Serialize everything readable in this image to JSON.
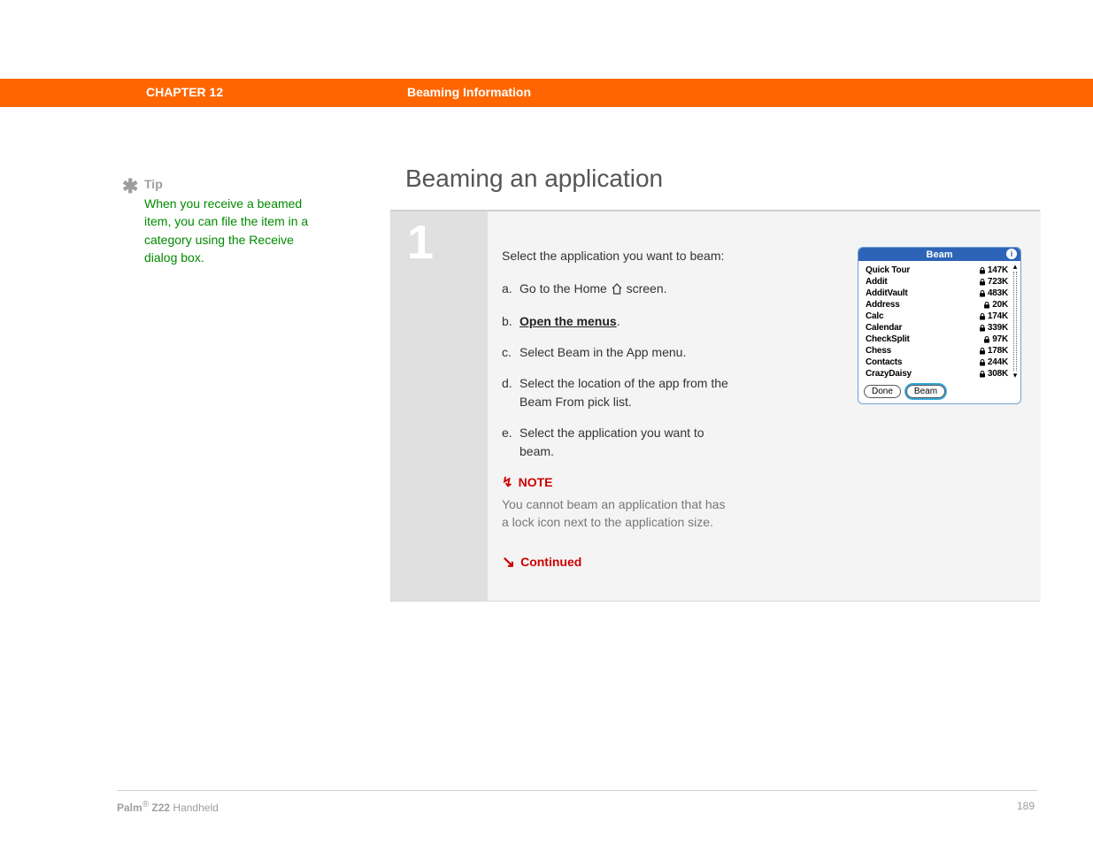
{
  "header": {
    "chapter": "CHAPTER 12",
    "title": "Beaming Information"
  },
  "tip": {
    "star": "✱",
    "label": "Tip",
    "text": "When you receive a beamed item, you can file the item in a category using the Receive dialog box."
  },
  "heading": "Beaming an application",
  "step": {
    "number": "1",
    "lead": "Select the application you want to beam:",
    "subs": [
      {
        "label": "a.",
        "pre": "Go to the Home ",
        "post": " screen."
      },
      {
        "label": "b.",
        "link": "Open the menus",
        "post": "."
      },
      {
        "label": "c.",
        "text": "Select Beam in the App menu."
      },
      {
        "label": "d.",
        "text": "Select the location of the app from the Beam From pick list."
      },
      {
        "label": "e.",
        "text": "Select the application you want to beam."
      }
    ],
    "note": {
      "label": "NOTE",
      "text": "You cannot beam an application that has a lock icon next to the application size."
    },
    "continued": "Continued"
  },
  "palm": {
    "title": "Beam",
    "info": "i",
    "apps": [
      {
        "name": "Quick Tour",
        "lock": true,
        "size": "147K"
      },
      {
        "name": "Addit",
        "lock": true,
        "size": "723K"
      },
      {
        "name": "AdditVault",
        "lock": true,
        "size": "483K"
      },
      {
        "name": "Address",
        "lock": true,
        "size": "20K"
      },
      {
        "name": "Calc",
        "lock": true,
        "size": "174K"
      },
      {
        "name": "Calendar",
        "lock": true,
        "size": "339K"
      },
      {
        "name": "CheckSplit",
        "lock": true,
        "size": "97K"
      },
      {
        "name": "Chess",
        "lock": true,
        "size": "178K"
      },
      {
        "name": "Contacts",
        "lock": true,
        "size": "244K"
      },
      {
        "name": "CrazyDaisy",
        "lock": true,
        "size": "308K"
      }
    ],
    "buttons": {
      "done": "Done",
      "beam": "Beam"
    }
  },
  "footer": {
    "brand1": "Palm",
    "reg": "®",
    "brand2": " Z22",
    "product": " Handheld",
    "page": "189"
  }
}
